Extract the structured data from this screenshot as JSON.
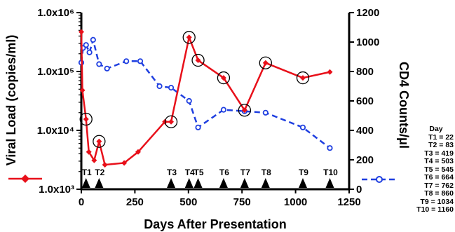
{
  "chart_data": {
    "type": "line",
    "xlabel": "Days After Presentation",
    "ylabel_left": "Viral Load (copies/ml)",
    "ylabel_right": "CD4 Counts/μl",
    "x_ticks": [
      "0",
      "250",
      "500",
      "750",
      "1000",
      "1250"
    ],
    "xlim": [
      0,
      1250
    ],
    "y_left_ticks": [
      "1.0x10³",
      "1.0x10⁴",
      "1.0x10⁵",
      "1.0x10⁶"
    ],
    "y_left_scale": "log",
    "y_left_lim": [
      1000,
      1000000
    ],
    "y_right_ticks": [
      "0",
      "200",
      "400",
      "600",
      "800",
      "1000",
      "1200"
    ],
    "y_right_lim": [
      0,
      1200
    ],
    "grid": false,
    "series": [
      {
        "axis": "left",
        "color": "#e8101a",
        "line_style": "solid",
        "marker": "diamond",
        "x": [
          0,
          5,
          22,
          35,
          60,
          83,
          110,
          200,
          265,
          390,
          419,
          503,
          545,
          664,
          762,
          860,
          1034,
          1160
        ],
        "y": [
          470000,
          48000,
          15500,
          4300,
          3100,
          6500,
          2600,
          2800,
          4300,
          14000,
          14000,
          380000,
          155000,
          78000,
          22000,
          140000,
          78000,
          98000
        ]
      },
      {
        "axis": "right",
        "color": "#1f3fe0",
        "line_style": "dashed",
        "marker": "open-circle",
        "x": [
          0,
          8,
          22,
          38,
          55,
          83,
          120,
          210,
          275,
          365,
          419,
          503,
          545,
          664,
          762,
          860,
          1034,
          1160
        ],
        "y": [
          860,
          960,
          980,
          930,
          1015,
          850,
          820,
          870,
          870,
          700,
          690,
          600,
          420,
          540,
          530,
          520,
          420,
          280
        ]
      }
    ],
    "circled_points": [
      22,
      83,
      419,
      503,
      545,
      664,
      762,
      860,
      1034
    ],
    "time_markers": [
      {
        "label": "T1",
        "day": 22
      },
      {
        "label": "T2",
        "day": 83
      },
      {
        "label": "T3",
        "day": 419
      },
      {
        "label": "T4",
        "day": 503
      },
      {
        "label": "T5",
        "day": 545
      },
      {
        "label": "T6",
        "day": 664
      },
      {
        "label": "T7",
        "day": 762
      },
      {
        "label": "T8",
        "day": 860
      },
      {
        "label": "T9",
        "day": 1034
      },
      {
        "label": "T10",
        "day": 1160
      }
    ],
    "day_table": {
      "title": "Day",
      "rows": [
        "T1  =  22",
        "T2  =  83",
        "T3  =  419",
        "T4  =  503",
        "T5  =  545",
        "T6  =  664",
        "T7  =  762",
        "T8  =  860",
        "T9  =  1034",
        "T10 = 1160"
      ]
    }
  }
}
